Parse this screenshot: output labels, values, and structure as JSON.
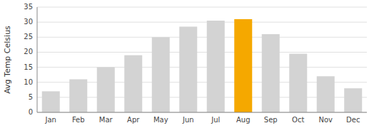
{
  "chart_data": {
    "type": "bar",
    "categories": [
      "Jan",
      "Feb",
      "Mar",
      "Apr",
      "May",
      "Jun",
      "Jul",
      "Aug",
      "Sep",
      "Oct",
      "Nov",
      "Dec"
    ],
    "values": [
      7,
      11,
      15,
      19,
      25,
      28.5,
      30.5,
      31,
      26,
      19.5,
      12,
      8
    ],
    "colors": [
      "#d3d3d3",
      "#d3d3d3",
      "#d3d3d3",
      "#d3d3d3",
      "#d3d3d3",
      "#d3d3d3",
      "#d3d3d3",
      "#f5a800",
      "#d3d3d3",
      "#d3d3d3",
      "#d3d3d3",
      "#d3d3d3"
    ],
    "ylabel": "Avg Temp Celsius",
    "ylim": [
      0,
      35
    ],
    "yticks": [
      0,
      5,
      10,
      15,
      20,
      25,
      30,
      35
    ],
    "grid": true
  }
}
